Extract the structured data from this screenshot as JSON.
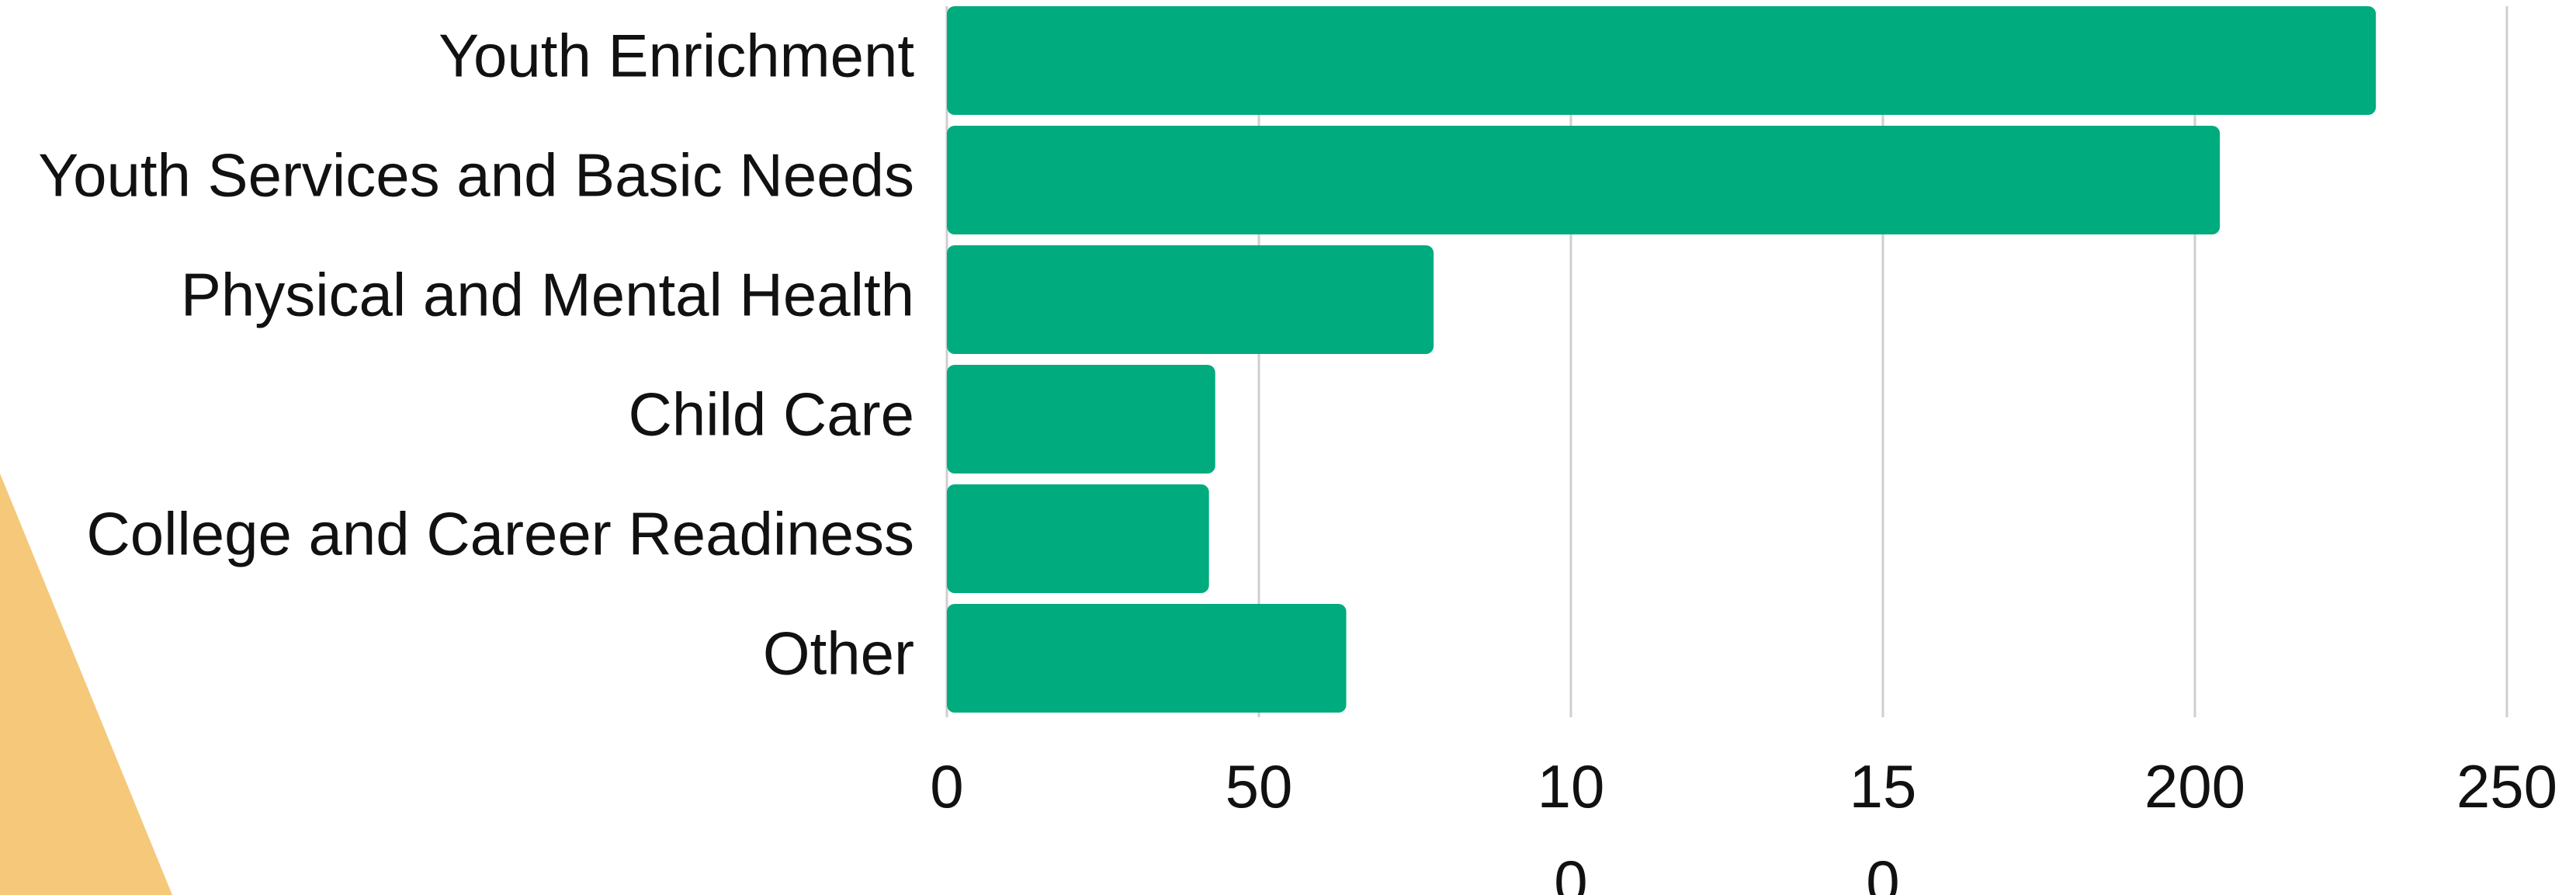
{
  "colors": {
    "bar": "#00ab7e",
    "grid": "#cfcfcf",
    "decoration": "#f5c87a",
    "text": "#111111"
  },
  "chart_data": {
    "type": "bar",
    "orientation": "horizontal",
    "title": "",
    "xlabel": "",
    "ylabel": "",
    "categories": [
      "Youth Enrichment",
      "Youth Services and Basic Needs",
      "Physical and Mental Health",
      "Child Care",
      "College and Career Readiness",
      "Other"
    ],
    "values": [
      229,
      204,
      78,
      43,
      42,
      64
    ],
    "xlim": [
      0,
      250
    ],
    "x_ticks": [
      {
        "value": 0,
        "lines": [
          "0"
        ]
      },
      {
        "value": 50,
        "lines": [
          "50"
        ]
      },
      {
        "value": 100,
        "lines": [
          "10",
          "0"
        ]
      },
      {
        "value": 150,
        "lines": [
          "15",
          "0"
        ]
      },
      {
        "value": 200,
        "lines": [
          "200"
        ]
      },
      {
        "value": 250,
        "lines": [
          "250"
        ]
      }
    ],
    "grid": true,
    "legend": "none"
  }
}
